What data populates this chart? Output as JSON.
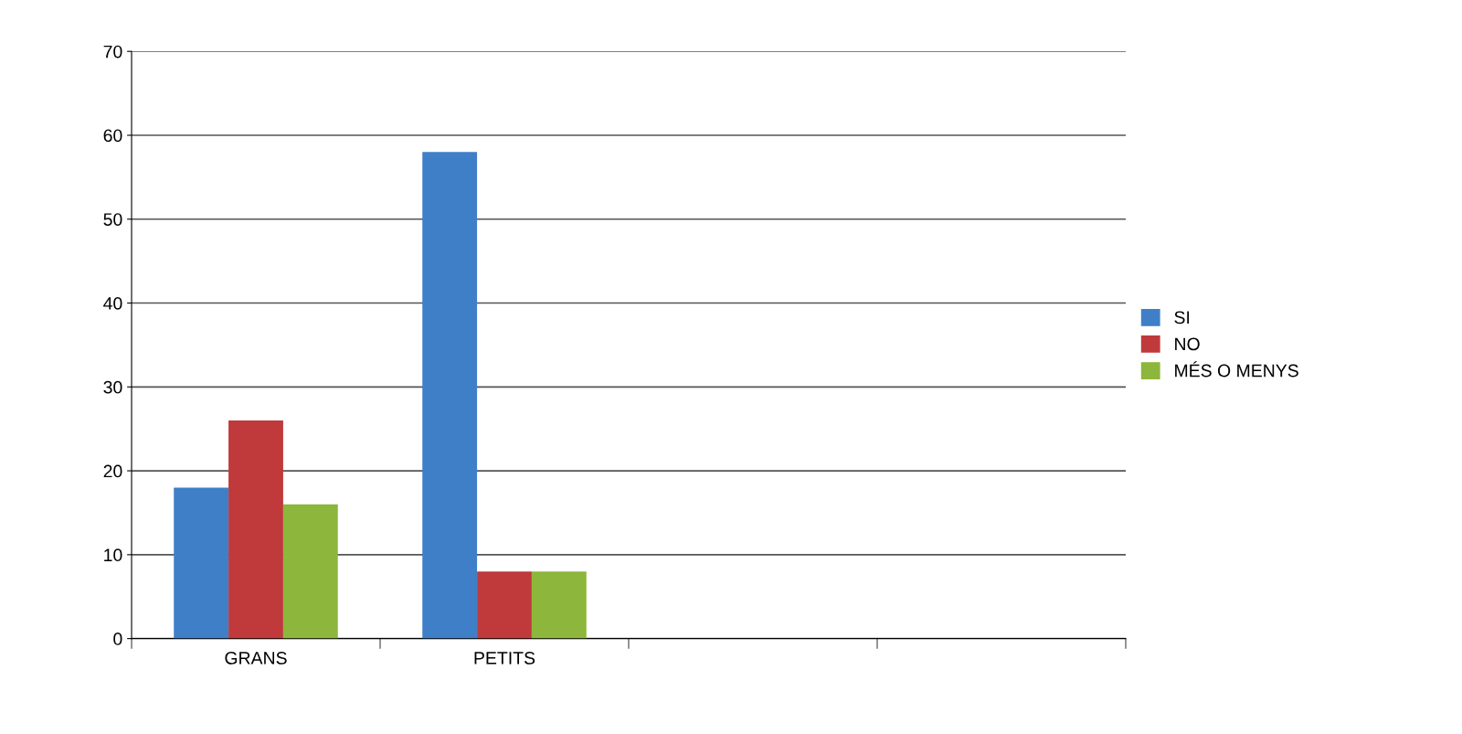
{
  "chart_data": {
    "type": "bar",
    "categories": [
      "GRANS",
      "PETITS",
      null,
      null
    ],
    "series": [
      {
        "name": "SI",
        "color": "#3f7fc8",
        "values": [
          18,
          58,
          null,
          null
        ]
      },
      {
        "name": "NO",
        "color": "#c0393b",
        "values": [
          26,
          8,
          null,
          null
        ]
      },
      {
        "name": "MÉS O MENYS",
        "color": "#8db63c",
        "values": [
          16,
          8,
          null,
          null
        ]
      }
    ],
    "ylim": [
      0,
      70
    ],
    "yticks": [
      0,
      10,
      20,
      30,
      40,
      50,
      60,
      70
    ],
    "grid": "y",
    "legend": "right"
  }
}
